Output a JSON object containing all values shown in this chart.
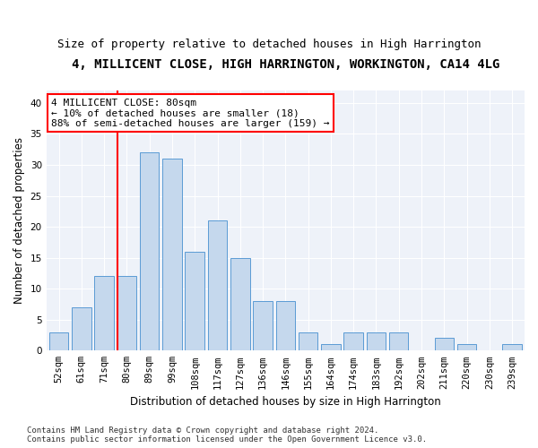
{
  "title": "4, MILLICENT CLOSE, HIGH HARRINGTON, WORKINGTON, CA14 4LG",
  "subtitle": "Size of property relative to detached houses in High Harrington",
  "xlabel": "Distribution of detached houses by size in High Harrington",
  "ylabel": "Number of detached properties",
  "footnote": "Contains HM Land Registry data © Crown copyright and database right 2024.\nContains public sector information licensed under the Open Government Licence v3.0.",
  "bin_labels": [
    "52sqm",
    "61sqm",
    "71sqm",
    "80sqm",
    "89sqm",
    "99sqm",
    "108sqm",
    "117sqm",
    "127sqm",
    "136sqm",
    "146sqm",
    "155sqm",
    "164sqm",
    "174sqm",
    "183sqm",
    "192sqm",
    "202sqm",
    "211sqm",
    "220sqm",
    "230sqm",
    "239sqm"
  ],
  "bar_heights": [
    3,
    7,
    12,
    12,
    32,
    31,
    16,
    21,
    15,
    8,
    8,
    3,
    1,
    3,
    3,
    3,
    0,
    2,
    1,
    0,
    1
  ],
  "bar_color": "#c5d8ed",
  "bar_edge_color": "#5b9bd5",
  "vline_x_index": 3,
  "vline_color": "red",
  "annotation_line1": "4 MILLICENT CLOSE: 80sqm",
  "annotation_line2": "← 10% of detached houses are smaller (18)",
  "annotation_line3": "88% of semi-detached houses are larger (159) →",
  "annotation_box_color": "white",
  "annotation_box_edge": "red",
  "ylim": [
    0,
    42
  ],
  "yticks": [
    0,
    5,
    10,
    15,
    20,
    25,
    30,
    35,
    40
  ],
  "bg_color": "#eef2f9",
  "grid_color": "white",
  "title_fontsize": 10,
  "subtitle_fontsize": 9,
  "axis_label_fontsize": 8.5,
  "tick_fontsize": 7.5,
  "annotation_fontsize": 8,
  "footnote_fontsize": 6.5
}
